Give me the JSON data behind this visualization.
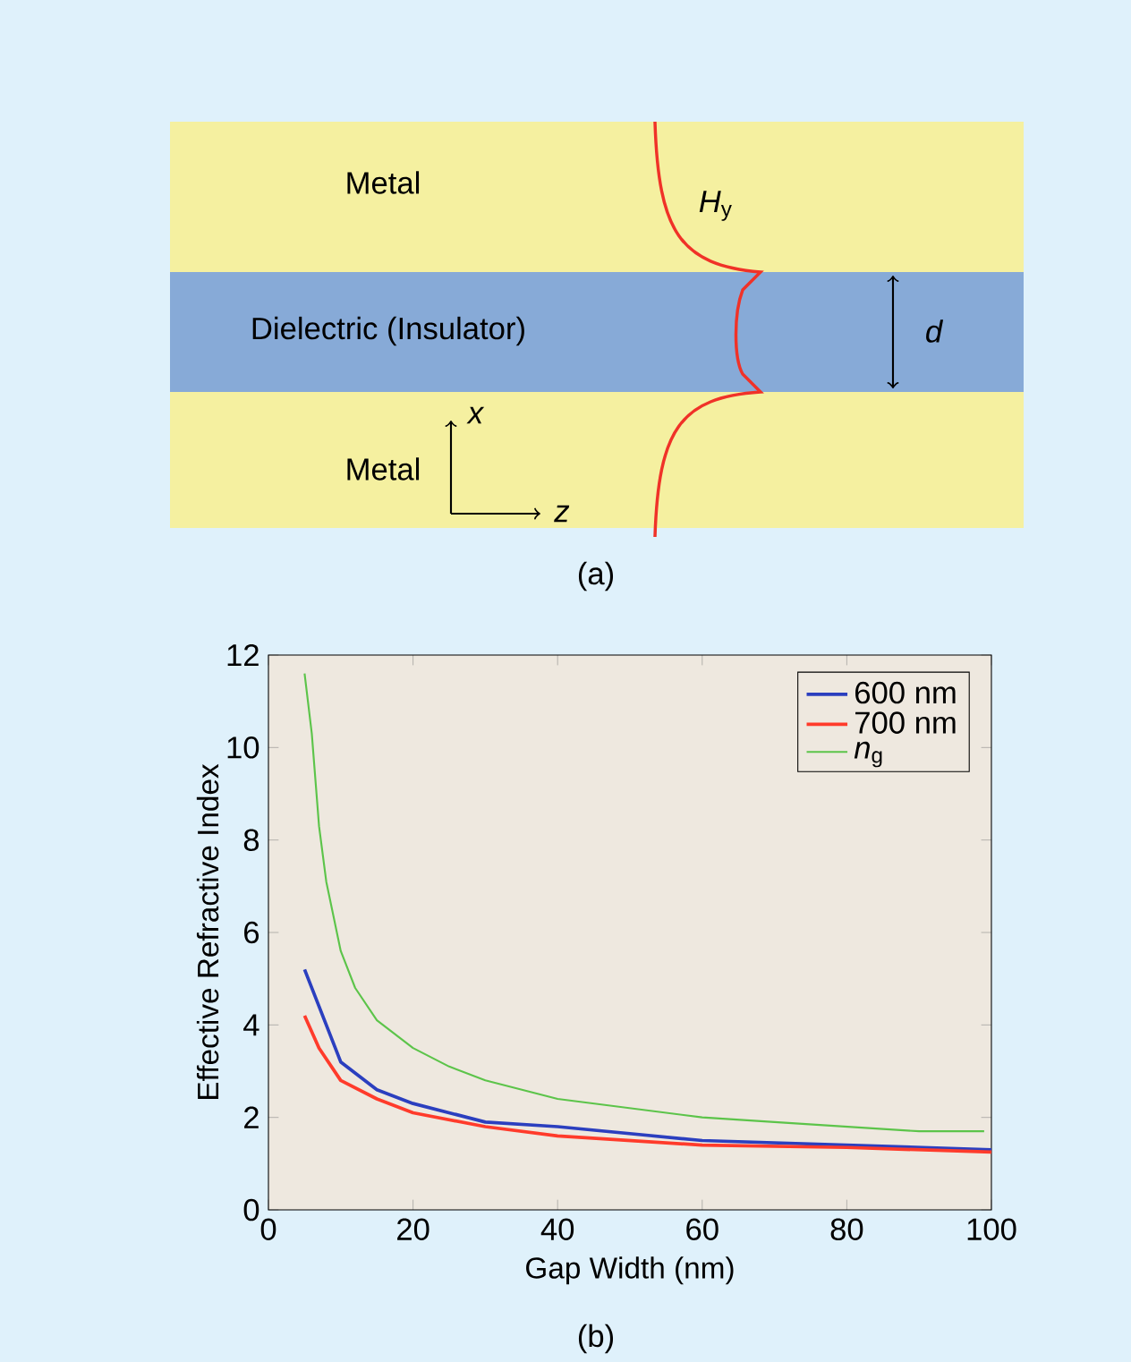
{
  "chart_data": {
    "type": "line",
    "xlabel": "Gap Width (nm)",
    "ylabel": "Effective Refractive Index",
    "xlim": [
      0,
      100
    ],
    "xticks": [
      0,
      20,
      40,
      60,
      80,
      100
    ],
    "ylim": [
      0,
      12
    ],
    "yticks": [
      0,
      2,
      4,
      6,
      8,
      10,
      12
    ],
    "grid": false,
    "legend": "top right",
    "marker": "none",
    "line_style": "solid",
    "series": [
      {
        "name": "600 nm",
        "color": "#2b3fbf",
        "x": [
          5,
          7,
          10,
          15,
          20,
          30,
          40,
          60,
          80,
          100
        ],
        "values": [
          5.2,
          4.4,
          3.2,
          2.6,
          2.3,
          1.9,
          1.8,
          1.5,
          1.4,
          1.3
        ]
      },
      {
        "name": "700 nm",
        "color": "#ff3b2b",
        "x": [
          5,
          7,
          10,
          15,
          20,
          30,
          40,
          60,
          80,
          100
        ],
        "values": [
          4.2,
          3.5,
          2.8,
          2.4,
          2.1,
          1.8,
          1.6,
          1.4,
          1.35,
          1.25
        ]
      },
      {
        "name": "*n*$_{g}$",
        "color": "#5cc44a",
        "x": [
          5,
          6,
          7,
          8,
          10,
          12,
          15,
          20,
          25,
          30,
          40,
          50,
          60,
          70,
          80,
          90,
          99
        ],
        "values": [
          11.6,
          10.3,
          8.3,
          7.1,
          5.6,
          4.8,
          4.1,
          3.5,
          3.1,
          2.8,
          2.4,
          2.2,
          2.0,
          1.9,
          1.8,
          1.7,
          1.7
        ]
      }
    ],
    "annotations": [
      "Metal",
      "*H*$_{y}$",
      "Dielectric (Insulator)",
      "*d*",
      "*x*",
      "Metal",
      "*z*",
      "(a)",
      "(b)"
    ]
  }
}
